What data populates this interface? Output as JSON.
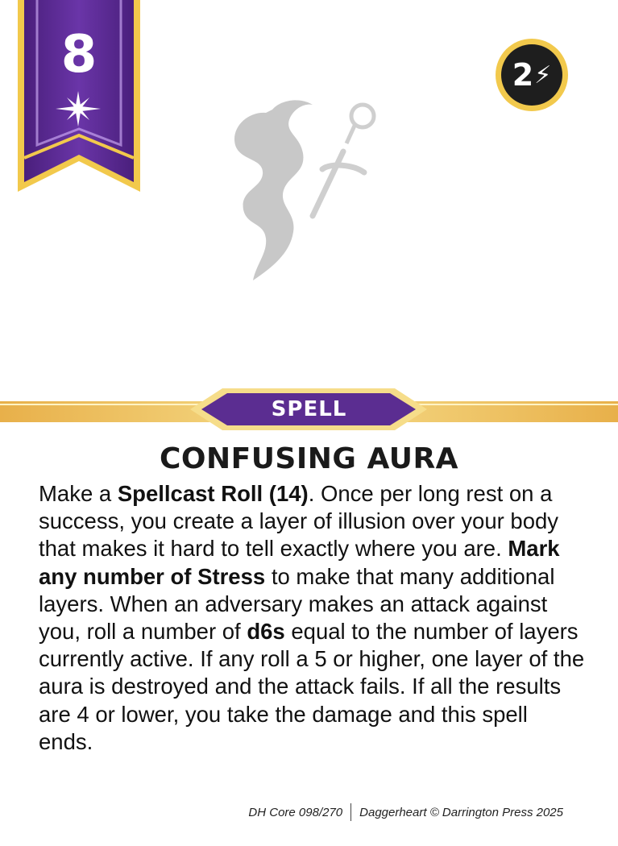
{
  "card": {
    "level": "8",
    "cost": "2",
    "type": "SPELL",
    "title": "CONFUSING AURA",
    "description": {
      "p1": "Make a ",
      "b1": "Spellcast Roll (14)",
      "p2": ". Once per long rest on a success, you create a layer of illusion over your body that makes it hard to tell exactly where you are. ",
      "b2": "Mark any number of Stress",
      "p3": " to make that many additional layers. When an adversary makes an attack against you, roll a number of ",
      "b3": "d6s",
      "p4": " equal to the number of layers currently active. If any roll a 5 or higher, one layer of the aura is destroyed and the attack fails. If all the results are 4 or lower, you take the damage and this spell ends."
    },
    "footer": {
      "card_number": "DH Core 098/270",
      "copyright": "Daggerheart © Darrington Press 2025"
    }
  },
  "icons": {
    "domain": "star-sparkle-icon",
    "cost": "lightning-bolt-icon",
    "emblem": "fox-dagger-emblem-icon"
  },
  "colors": {
    "banner_purple": "#5b2d91",
    "gold": "#f2c94c",
    "cost_badge": "#1e1e1e",
    "emblem_gray": "#c8c8c8"
  }
}
